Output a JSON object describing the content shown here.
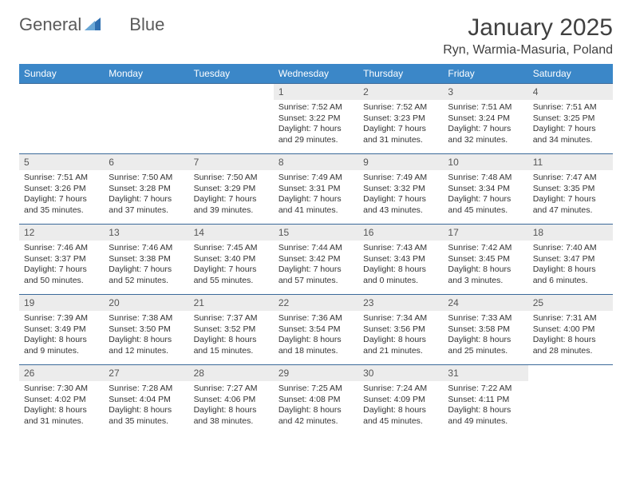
{
  "brand": {
    "word1": "General",
    "word2": "Blue",
    "triangle_color": "#2f6fb0"
  },
  "title": "January 2025",
  "subtitle": "Ryn, Warmia-Masuria, Poland",
  "colors": {
    "header_bg": "#3b87c8",
    "header_text": "#ffffff",
    "row_border": "#3b6a9a",
    "daynum_bg": "#ececec",
    "body_text": "#333333",
    "page_bg": "#ffffff"
  },
  "typography": {
    "title_fontsize": 30,
    "subtitle_fontsize": 16,
    "header_fontsize": 12,
    "daynum_fontsize": 12,
    "cell_fontsize": 10.5
  },
  "weekdays": [
    "Sunday",
    "Monday",
    "Tuesday",
    "Wednesday",
    "Thursday",
    "Friday",
    "Saturday"
  ],
  "weeks": [
    [
      null,
      null,
      null,
      {
        "n": "1",
        "sr": "Sunrise: 7:52 AM",
        "ss": "Sunset: 3:22 PM",
        "d1": "Daylight: 7 hours",
        "d2": "and 29 minutes."
      },
      {
        "n": "2",
        "sr": "Sunrise: 7:52 AM",
        "ss": "Sunset: 3:23 PM",
        "d1": "Daylight: 7 hours",
        "d2": "and 31 minutes."
      },
      {
        "n": "3",
        "sr": "Sunrise: 7:51 AM",
        "ss": "Sunset: 3:24 PM",
        "d1": "Daylight: 7 hours",
        "d2": "and 32 minutes."
      },
      {
        "n": "4",
        "sr": "Sunrise: 7:51 AM",
        "ss": "Sunset: 3:25 PM",
        "d1": "Daylight: 7 hours",
        "d2": "and 34 minutes."
      }
    ],
    [
      {
        "n": "5",
        "sr": "Sunrise: 7:51 AM",
        "ss": "Sunset: 3:26 PM",
        "d1": "Daylight: 7 hours",
        "d2": "and 35 minutes."
      },
      {
        "n": "6",
        "sr": "Sunrise: 7:50 AM",
        "ss": "Sunset: 3:28 PM",
        "d1": "Daylight: 7 hours",
        "d2": "and 37 minutes."
      },
      {
        "n": "7",
        "sr": "Sunrise: 7:50 AM",
        "ss": "Sunset: 3:29 PM",
        "d1": "Daylight: 7 hours",
        "d2": "and 39 minutes."
      },
      {
        "n": "8",
        "sr": "Sunrise: 7:49 AM",
        "ss": "Sunset: 3:31 PM",
        "d1": "Daylight: 7 hours",
        "d2": "and 41 minutes."
      },
      {
        "n": "9",
        "sr": "Sunrise: 7:49 AM",
        "ss": "Sunset: 3:32 PM",
        "d1": "Daylight: 7 hours",
        "d2": "and 43 minutes."
      },
      {
        "n": "10",
        "sr": "Sunrise: 7:48 AM",
        "ss": "Sunset: 3:34 PM",
        "d1": "Daylight: 7 hours",
        "d2": "and 45 minutes."
      },
      {
        "n": "11",
        "sr": "Sunrise: 7:47 AM",
        "ss": "Sunset: 3:35 PM",
        "d1": "Daylight: 7 hours",
        "d2": "and 47 minutes."
      }
    ],
    [
      {
        "n": "12",
        "sr": "Sunrise: 7:46 AM",
        "ss": "Sunset: 3:37 PM",
        "d1": "Daylight: 7 hours",
        "d2": "and 50 minutes."
      },
      {
        "n": "13",
        "sr": "Sunrise: 7:46 AM",
        "ss": "Sunset: 3:38 PM",
        "d1": "Daylight: 7 hours",
        "d2": "and 52 minutes."
      },
      {
        "n": "14",
        "sr": "Sunrise: 7:45 AM",
        "ss": "Sunset: 3:40 PM",
        "d1": "Daylight: 7 hours",
        "d2": "and 55 minutes."
      },
      {
        "n": "15",
        "sr": "Sunrise: 7:44 AM",
        "ss": "Sunset: 3:42 PM",
        "d1": "Daylight: 7 hours",
        "d2": "and 57 minutes."
      },
      {
        "n": "16",
        "sr": "Sunrise: 7:43 AM",
        "ss": "Sunset: 3:43 PM",
        "d1": "Daylight: 8 hours",
        "d2": "and 0 minutes."
      },
      {
        "n": "17",
        "sr": "Sunrise: 7:42 AM",
        "ss": "Sunset: 3:45 PM",
        "d1": "Daylight: 8 hours",
        "d2": "and 3 minutes."
      },
      {
        "n": "18",
        "sr": "Sunrise: 7:40 AM",
        "ss": "Sunset: 3:47 PM",
        "d1": "Daylight: 8 hours",
        "d2": "and 6 minutes."
      }
    ],
    [
      {
        "n": "19",
        "sr": "Sunrise: 7:39 AM",
        "ss": "Sunset: 3:49 PM",
        "d1": "Daylight: 8 hours",
        "d2": "and 9 minutes."
      },
      {
        "n": "20",
        "sr": "Sunrise: 7:38 AM",
        "ss": "Sunset: 3:50 PM",
        "d1": "Daylight: 8 hours",
        "d2": "and 12 minutes."
      },
      {
        "n": "21",
        "sr": "Sunrise: 7:37 AM",
        "ss": "Sunset: 3:52 PM",
        "d1": "Daylight: 8 hours",
        "d2": "and 15 minutes."
      },
      {
        "n": "22",
        "sr": "Sunrise: 7:36 AM",
        "ss": "Sunset: 3:54 PM",
        "d1": "Daylight: 8 hours",
        "d2": "and 18 minutes."
      },
      {
        "n": "23",
        "sr": "Sunrise: 7:34 AM",
        "ss": "Sunset: 3:56 PM",
        "d1": "Daylight: 8 hours",
        "d2": "and 21 minutes."
      },
      {
        "n": "24",
        "sr": "Sunrise: 7:33 AM",
        "ss": "Sunset: 3:58 PM",
        "d1": "Daylight: 8 hours",
        "d2": "and 25 minutes."
      },
      {
        "n": "25",
        "sr": "Sunrise: 7:31 AM",
        "ss": "Sunset: 4:00 PM",
        "d1": "Daylight: 8 hours",
        "d2": "and 28 minutes."
      }
    ],
    [
      {
        "n": "26",
        "sr": "Sunrise: 7:30 AM",
        "ss": "Sunset: 4:02 PM",
        "d1": "Daylight: 8 hours",
        "d2": "and 31 minutes."
      },
      {
        "n": "27",
        "sr": "Sunrise: 7:28 AM",
        "ss": "Sunset: 4:04 PM",
        "d1": "Daylight: 8 hours",
        "d2": "and 35 minutes."
      },
      {
        "n": "28",
        "sr": "Sunrise: 7:27 AM",
        "ss": "Sunset: 4:06 PM",
        "d1": "Daylight: 8 hours",
        "d2": "and 38 minutes."
      },
      {
        "n": "29",
        "sr": "Sunrise: 7:25 AM",
        "ss": "Sunset: 4:08 PM",
        "d1": "Daylight: 8 hours",
        "d2": "and 42 minutes."
      },
      {
        "n": "30",
        "sr": "Sunrise: 7:24 AM",
        "ss": "Sunset: 4:09 PM",
        "d1": "Daylight: 8 hours",
        "d2": "and 45 minutes."
      },
      {
        "n": "31",
        "sr": "Sunrise: 7:22 AM",
        "ss": "Sunset: 4:11 PM",
        "d1": "Daylight: 8 hours",
        "d2": "and 49 minutes."
      },
      null
    ]
  ]
}
